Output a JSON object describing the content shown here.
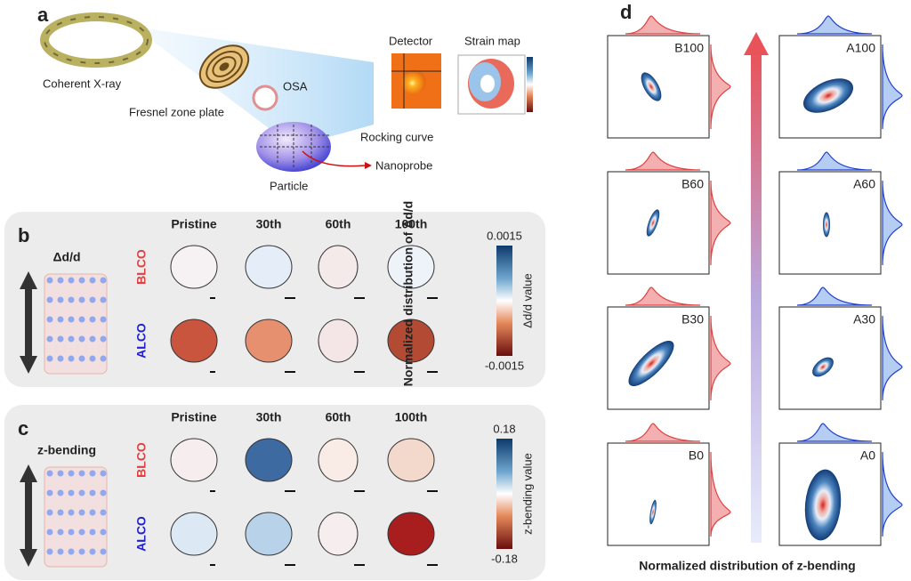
{
  "panel_a": {
    "label": "a",
    "source": "Coherent X-ray",
    "zone_plate": "Fresnel zone plate",
    "osa": "OSA",
    "detector": "Detector",
    "strain_map": "Strain map",
    "rocking": "Rocking curve",
    "nanoprobe": "Nanoprobe",
    "particle": "Particle"
  },
  "panel_b": {
    "label": "b",
    "quantity": "Δd/d",
    "columns": [
      "Pristine",
      "30th",
      "60th",
      "100th"
    ],
    "rows": [
      "BLCO",
      "ALCO"
    ],
    "colorbar": {
      "max": "0.0015",
      "min": "-0.0015",
      "label": "Δd/d value"
    }
  },
  "panel_c": {
    "label": "c",
    "quantity": "z-bending",
    "columns": [
      "Pristine",
      "30th",
      "60th",
      "100th"
    ],
    "rows": [
      "BLCO",
      "ALCO"
    ],
    "colorbar": {
      "max": "0.18",
      "min": "-0.18",
      "label": "z-bending value"
    }
  },
  "panel_d": {
    "label": "d",
    "y_label": "Normalized distribution of Δd/d",
    "x_label": "Normalized distribution of z-bending",
    "plots": [
      [
        "B100",
        "A100"
      ],
      [
        "B60",
        "A60"
      ],
      [
        "B30",
        "A30"
      ],
      [
        "B0",
        "A0"
      ]
    ]
  }
}
